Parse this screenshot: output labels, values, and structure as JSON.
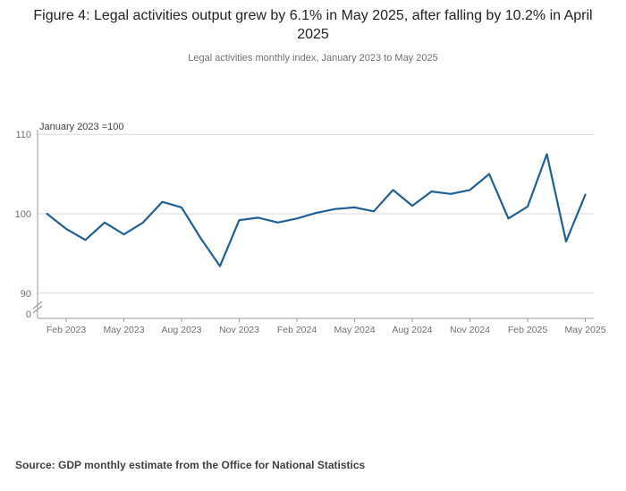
{
  "chart_data": {
    "type": "line",
    "title": "Figure 4: Legal activities output grew by 6.1% in May 2025, after falling by 10.2% in April 2025",
    "subtitle": "Legal activities monthly index, January 2023 to May 2025",
    "unit_label": "January 2023 =100",
    "source": "Source: GDP monthly estimate from the Office for National Statistics",
    "x": [
      "Jan 2023",
      "Feb 2023",
      "Mar 2023",
      "Apr 2023",
      "May 2023",
      "Jun 2023",
      "Jul 2023",
      "Aug 2023",
      "Sep 2023",
      "Oct 2023",
      "Nov 2023",
      "Dec 2023",
      "Jan 2024",
      "Feb 2024",
      "Mar 2024",
      "Apr 2024",
      "May 2024",
      "Jun 2024",
      "Jul 2024",
      "Aug 2024",
      "Sep 2024",
      "Oct 2024",
      "Nov 2024",
      "Dec 2024",
      "Jan 2025",
      "Feb 2025",
      "Mar 2025",
      "Apr 2025",
      "May 2025"
    ],
    "values": [
      100.0,
      98.1,
      96.7,
      98.9,
      97.4,
      98.9,
      101.5,
      100.8,
      96.9,
      93.4,
      99.2,
      99.5,
      98.9,
      99.4,
      100.1,
      100.6,
      100.8,
      100.3,
      103.0,
      101.0,
      102.8,
      102.5,
      103.0,
      105.0,
      99.4,
      100.9,
      107.5,
      96.5,
      102.4
    ],
    "x_tick_labels": [
      "Feb 2023",
      "May 2023",
      "Aug 2023",
      "Nov 2023",
      "Feb 2024",
      "May 2024",
      "Aug 2024",
      "Nov 2024",
      "Feb 2025",
      "May 2025"
    ],
    "y_gridlines": [
      110,
      100,
      90
    ],
    "y_tick_labels": [
      "110",
      "100",
      "90",
      "0"
    ],
    "ylim": [
      90,
      110
    ],
    "axis_break": true,
    "grid": "horizontal",
    "legend": "none",
    "line_color": "#206095",
    "axis_color": "#9b9b9b",
    "gridline_color": "#d9d9d9",
    "tick_label_color": "#707071"
  }
}
